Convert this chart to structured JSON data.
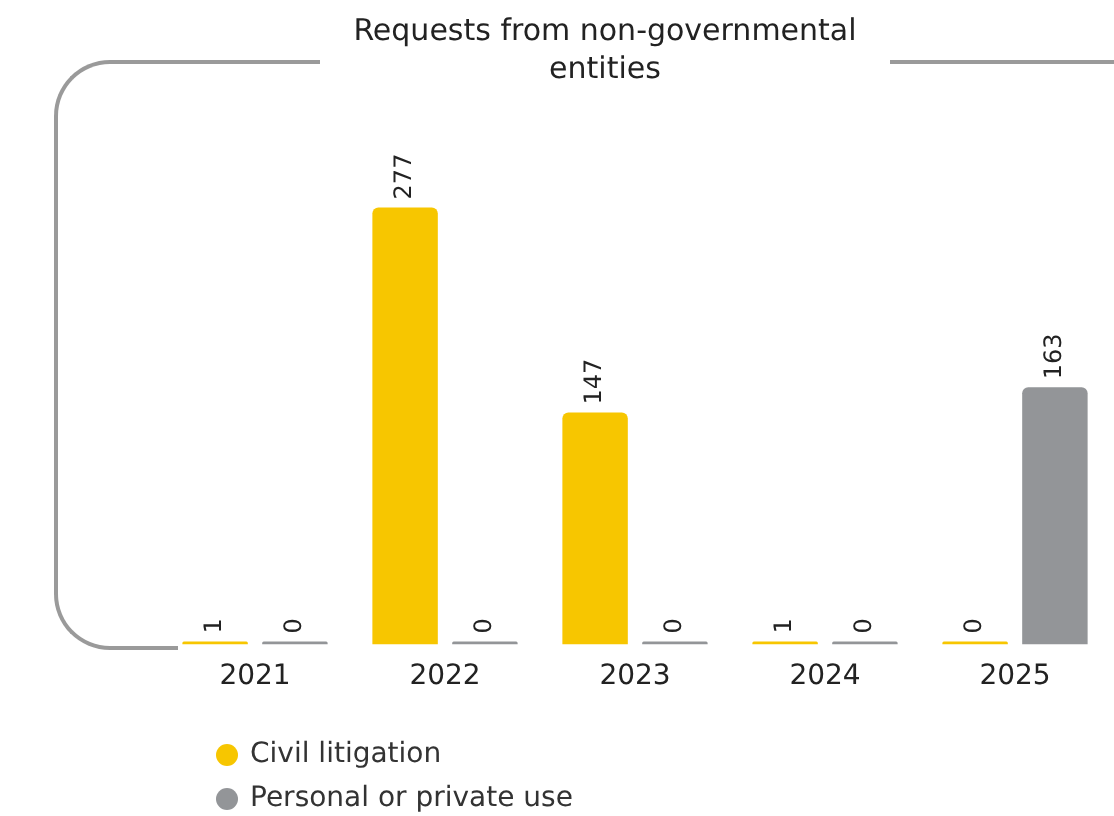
{
  "chart_data": {
    "type": "bar",
    "title": "Requests from non-governmental entities",
    "categories": [
      "2021",
      "2022",
      "2023",
      "2024",
      "2025"
    ],
    "series": [
      {
        "name": "Civil litigation",
        "color": "#f7c600",
        "values": [
          1,
          277,
          147,
          1,
          0
        ]
      },
      {
        "name": "Personal or private use",
        "color": "#939598",
        "values": [
          0,
          0,
          0,
          0,
          163
        ]
      }
    ],
    "data_labels": true,
    "legend": "bottom left",
    "grid": false
  }
}
